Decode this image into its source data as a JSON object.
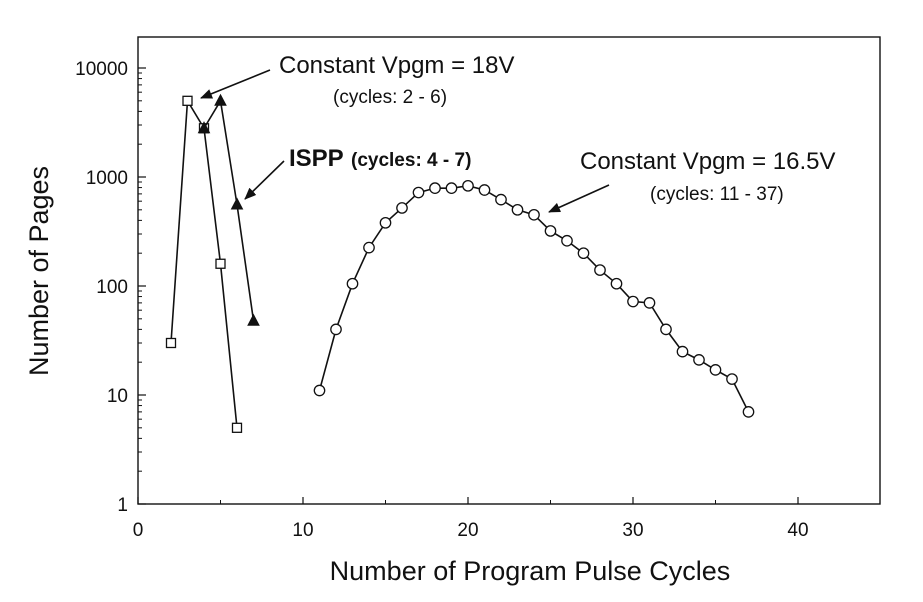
{
  "chart_data": {
    "type": "line",
    "xlabel": "Number of Program Pulse Cycles",
    "ylabel": "Number of Pages",
    "xlim": [
      0,
      45
    ],
    "ylim": [
      1,
      20000
    ],
    "yscale": "log",
    "grid": false,
    "x_ticks": [
      "0",
      "10",
      "20",
      "30",
      "40"
    ],
    "y_ticks": [
      "1",
      "10",
      "100",
      "1000",
      "10000"
    ],
    "series": [
      {
        "marker": "square",
        "color": "#111111",
        "x": [
          2,
          3,
          4,
          5,
          6
        ],
        "y": [
          30,
          5000,
          2800,
          160,
          5
        ]
      },
      {
        "marker": "triangle-filled",
        "color": "#111111",
        "x": [
          4,
          5,
          6,
          7
        ],
        "y": [
          2800,
          5000,
          560,
          48
        ]
      },
      {
        "marker": "circle",
        "color": "#111111",
        "x": [
          11,
          12,
          13,
          14,
          15,
          16,
          17,
          18,
          19,
          20,
          21,
          22,
          23,
          24,
          25,
          26,
          27,
          28,
          29,
          30,
          31,
          32,
          33,
          34,
          35,
          36,
          37
        ],
        "y": [
          11,
          40,
          105,
          225,
          380,
          520,
          720,
          790,
          790,
          830,
          760,
          620,
          500,
          450,
          320,
          260,
          200,
          140,
          105,
          72,
          70,
          40,
          25,
          21,
          17,
          14,
          7
        ]
      }
    ],
    "annotations": [
      {
        "text": "Constant Vpgm = 18V"
      },
      {
        "text": "(cycles: 2 - 6)"
      },
      {
        "text": "ISPP"
      },
      {
        "text": "(cycles: 4 - 7)"
      },
      {
        "text": "Constant Vpgm = 16.5V"
      },
      {
        "text": "(cycles: 11 - 37)"
      }
    ]
  }
}
